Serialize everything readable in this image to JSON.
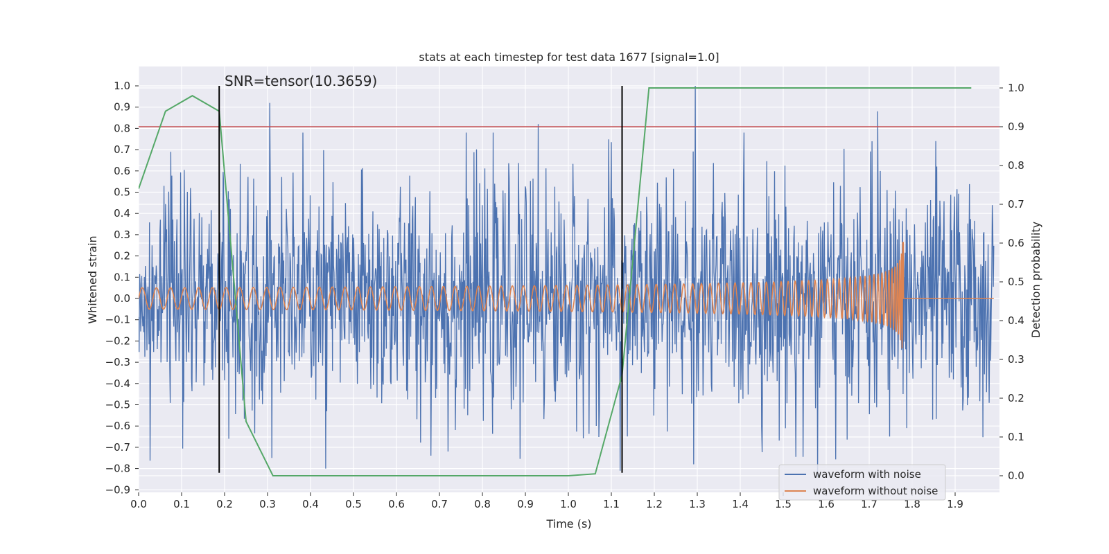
{
  "chart_data": {
    "type": "line",
    "title": "stats at each timestep for test data 1677 [signal=1.0]",
    "xlabel": "Time (s)",
    "ylabel": "Whitened strain",
    "y2label": "Detection probability",
    "annotation": "SNR=tensor(10.3659)",
    "xlim": [
      0.0,
      1.99
    ],
    "ylim": [
      -0.9,
      1.0
    ],
    "y2lim": [
      -0.04,
      1.04
    ],
    "xticks": [
      "0.0",
      "0.1",
      "0.2",
      "0.3",
      "0.4",
      "0.5",
      "0.6",
      "0.7",
      "0.8",
      "0.9",
      "1.0",
      "1.1",
      "1.2",
      "1.3",
      "1.4",
      "1.5",
      "1.6",
      "1.7",
      "1.8",
      "1.9"
    ],
    "yticks": [
      "1.0",
      "0.9",
      "0.8",
      "0.7",
      "0.6",
      "0.5",
      "0.4",
      "0.3",
      "0.2",
      "0.1",
      "0.0",
      "−0.1",
      "−0.2",
      "−0.3",
      "−0.4",
      "−0.5",
      "−0.6",
      "−0.7",
      "−0.8",
      "−0.9"
    ],
    "y2ticks": [
      "1.0",
      "0.9",
      "0.8",
      "0.7",
      "0.6",
      "0.5",
      "0.4",
      "0.3",
      "0.2",
      "0.1",
      "0.0"
    ],
    "grid": true,
    "legend_position": "bottom-right",
    "series": [
      {
        "name": "waveform with noise",
        "color": "#4c72b0",
        "kind": "noisy-strain"
      },
      {
        "name": "waveform without noise",
        "color": "#dd8452",
        "kind": "chirp"
      }
    ],
    "detection_probability": {
      "color": "#55a868",
      "x": [
        0.0,
        0.0625,
        0.125,
        0.1875,
        0.25,
        0.3125,
        0.375,
        0.4375,
        0.5,
        0.5625,
        0.625,
        0.6875,
        0.75,
        0.8125,
        0.875,
        0.9375,
        1.0,
        1.0625,
        1.125,
        1.1875,
        1.25,
        1.3125,
        1.375,
        1.4375,
        1.5,
        1.5625,
        1.625,
        1.6875,
        1.75,
        1.8125,
        1.875,
        1.9375
      ],
      "y": [
        0.74,
        0.94,
        0.98,
        0.94,
        0.14,
        0.0,
        0.0,
        0.0,
        0.0,
        0.0,
        0.0,
        0.0,
        0.0,
        0.0,
        0.0,
        0.0,
        0.0,
        0.005,
        0.26,
        1.0,
        1.0,
        1.0,
        1.0,
        1.0,
        1.0,
        1.0,
        1.0,
        1.0,
        1.0,
        1.0,
        1.0,
        1.0
      ]
    },
    "threshold": {
      "y2": 0.9,
      "color": "#c44e52"
    },
    "vlines": [
      {
        "x": 0.1875,
        "y_from": -0.82,
        "y_to": 1.0
      },
      {
        "x": 1.125,
        "y_from": -0.82,
        "y_to": 1.0
      }
    ],
    "noise_peaks": [
      {
        "x": 0.305,
        "y": 0.92
      },
      {
        "x": 0.31,
        "y": -0.75
      },
      {
        "x": 0.435,
        "y": -0.8
      },
      {
        "x": 0.93,
        "y": 0.82
      },
      {
        "x": 0.72,
        "y": -0.72
      },
      {
        "x": 1.295,
        "y": 1.0
      },
      {
        "x": 1.72,
        "y": 0.88
      },
      {
        "x": 1.58,
        "y": -0.84
      },
      {
        "x": 1.12,
        "y": -0.81
      },
      {
        "x": 0.075,
        "y": 0.69
      },
      {
        "x": 0.21,
        "y": -0.66
      },
      {
        "x": 1.855,
        "y": 0.74
      }
    ]
  }
}
